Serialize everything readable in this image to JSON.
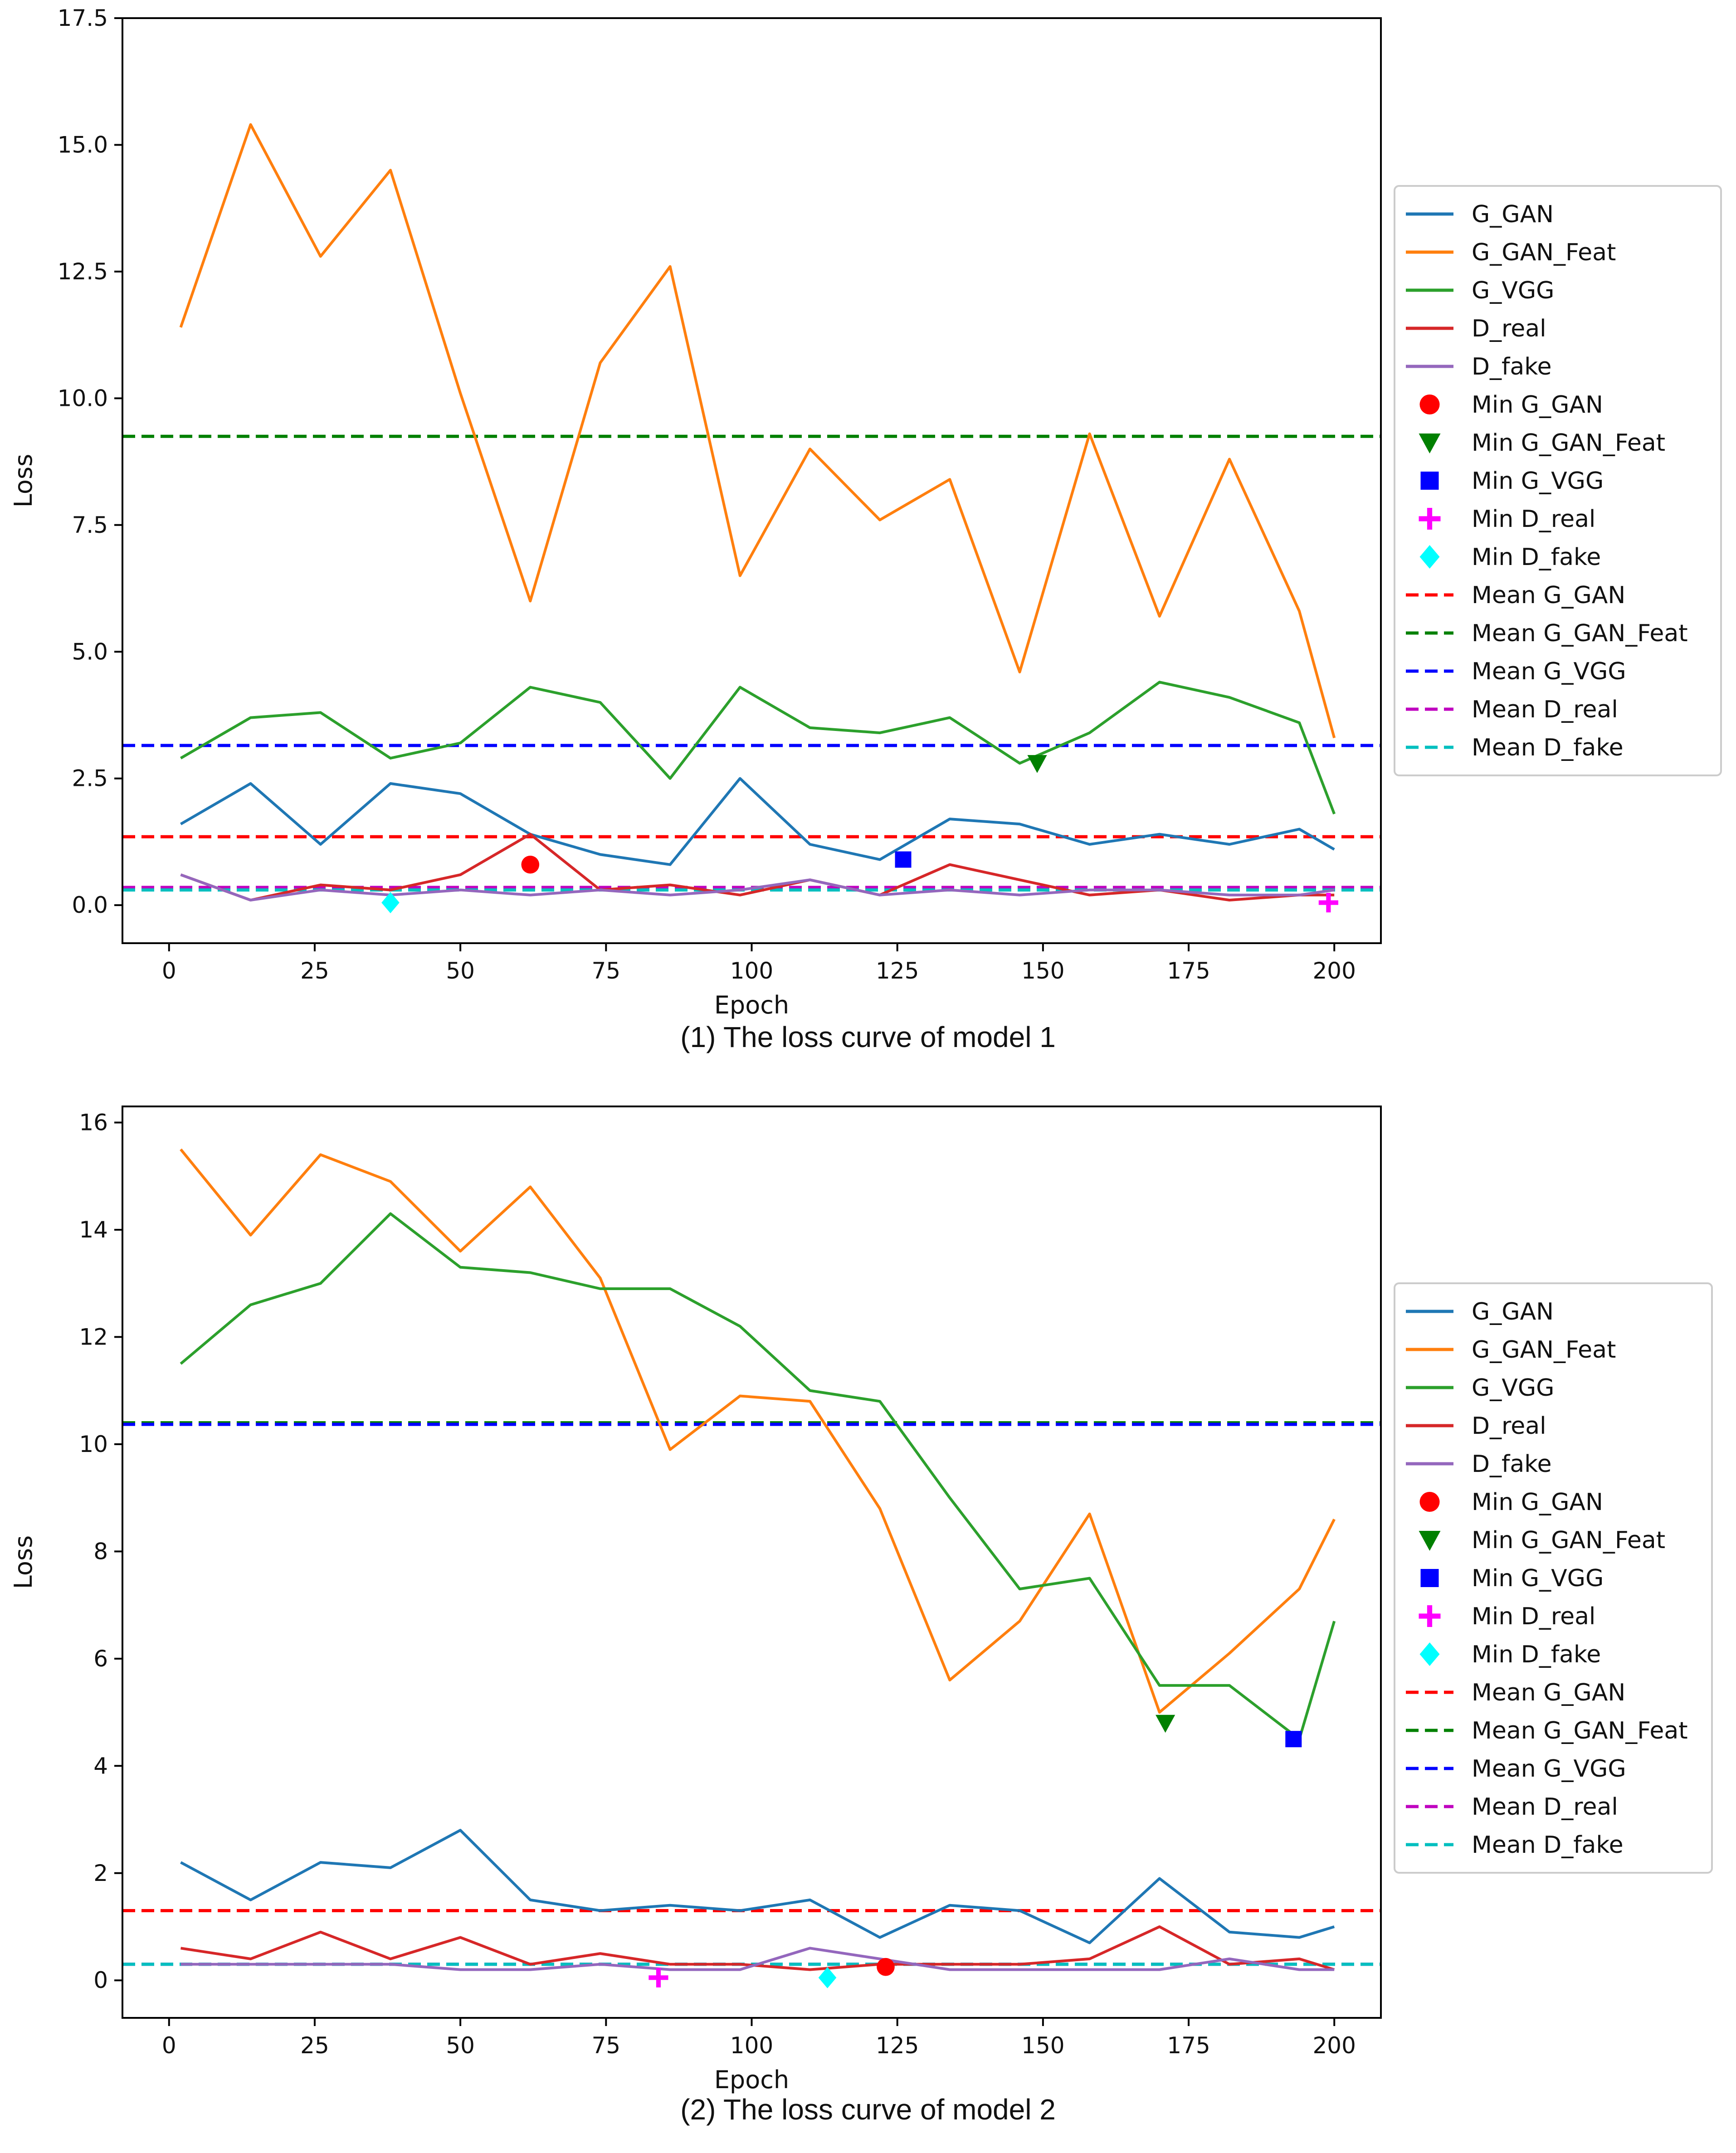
{
  "chart_data": [
    {
      "type": "line",
      "caption": "(1) The loss curve of model 1",
      "xlabel": "Epoch",
      "ylabel": "Loss",
      "xlim": [
        -8,
        208
      ],
      "ylim": [
        -0.75,
        17.5
      ],
      "xticks": [
        0,
        25,
        50,
        75,
        100,
        125,
        150,
        175,
        200
      ],
      "xtick_labels": [
        "0",
        "25",
        "50",
        "75",
        "100",
        "125",
        "150",
        "175",
        "200"
      ],
      "yticks": [
        0,
        2.5,
        5,
        7.5,
        10,
        12.5,
        15,
        17.5
      ],
      "ytick_labels": [
        "0.0",
        "2.5",
        "5.0",
        "7.5",
        "10.0",
        "12.5",
        "15.0",
        "17.5"
      ],
      "x": [
        2,
        14,
        26,
        38,
        50,
        62,
        74,
        86,
        98,
        110,
        122,
        134,
        146,
        158,
        170,
        182,
        194,
        200
      ],
      "series": [
        {
          "name": "G_GAN",
          "color": "#1f77b4",
          "values": [
            1.6,
            2.4,
            1.2,
            2.4,
            2.2,
            1.4,
            1.0,
            0.8,
            2.5,
            1.2,
            0.9,
            1.7,
            1.6,
            1.2,
            1.4,
            1.2,
            1.5,
            1.1
          ]
        },
        {
          "name": "G_GAN_Feat",
          "color": "#ff7f0e",
          "values": [
            11.4,
            15.4,
            12.8,
            14.5,
            10.1,
            6.0,
            10.7,
            12.6,
            6.5,
            9.0,
            7.6,
            8.4,
            4.6,
            9.3,
            5.7,
            8.8,
            5.8,
            3.3
          ]
        },
        {
          "name": "G_VGG",
          "color": "#2ca02c",
          "values": [
            2.9,
            3.7,
            3.8,
            2.9,
            3.2,
            4.3,
            4.0,
            2.5,
            4.3,
            3.5,
            3.4,
            3.7,
            2.8,
            3.4,
            4.4,
            4.1,
            3.6,
            1.8
          ]
        },
        {
          "name": "D_real",
          "color": "#d62728",
          "values": [
            0.6,
            0.1,
            0.4,
            0.3,
            0.6,
            1.4,
            0.3,
            0.4,
            0.2,
            0.5,
            0.2,
            0.8,
            0.5,
            0.2,
            0.3,
            0.1,
            0.2,
            0.2
          ]
        },
        {
          "name": "D_fake",
          "color": "#9467bd",
          "values": [
            0.6,
            0.1,
            0.3,
            0.2,
            0.3,
            0.2,
            0.3,
            0.2,
            0.3,
            0.5,
            0.2,
            0.3,
            0.2,
            0.3,
            0.3,
            0.2,
            0.2,
            0.3
          ]
        }
      ],
      "markers": [
        {
          "name": "Min G_GAN",
          "shape": "circle",
          "color": "#ff0000",
          "x": 62,
          "y": 0.8
        },
        {
          "name": "Min G_GAN_Feat",
          "shape": "triangle-down",
          "color": "#008000",
          "x": 149,
          "y": 2.8
        },
        {
          "name": "Min G_VGG",
          "shape": "square",
          "color": "#0000ff",
          "x": 126,
          "y": 0.9
        },
        {
          "name": "Min D_real",
          "shape": "plus",
          "color": "#ff00ff",
          "x": 199,
          "y": 0.05
        },
        {
          "name": "Min D_fake",
          "shape": "diamond",
          "color": "#00ffff",
          "x": 38,
          "y": 0.05
        }
      ],
      "means": [
        {
          "name": "Mean G_GAN",
          "color": "#ff0000",
          "value": 1.35
        },
        {
          "name": "Mean G_GAN_Feat",
          "color": "#008000",
          "value": 9.25
        },
        {
          "name": "Mean G_VGG",
          "color": "#0000ff",
          "value": 3.15
        },
        {
          "name": "Mean D_real",
          "color": "#bf00bf",
          "value": 0.35
        },
        {
          "name": "Mean D_fake",
          "color": "#00bfbf",
          "value": 0.3
        }
      ],
      "legend": "outside-right"
    },
    {
      "type": "line",
      "caption": "(2) The loss curve of model 2",
      "xlabel": "Epoch",
      "ylabel": "Loss",
      "xlim": [
        -8,
        208
      ],
      "ylim": [
        -0.7,
        16.3
      ],
      "xticks": [
        0,
        25,
        50,
        75,
        100,
        125,
        150,
        175,
        200
      ],
      "xtick_labels": [
        "0",
        "25",
        "50",
        "75",
        "100",
        "125",
        "150",
        "175",
        "200"
      ],
      "yticks": [
        0,
        2,
        4,
        6,
        8,
        10,
        12,
        14,
        16
      ],
      "ytick_labels": [
        "0",
        "2",
        "4",
        "6",
        "8",
        "10",
        "12",
        "14",
        "16"
      ],
      "x": [
        2,
        14,
        26,
        38,
        50,
        62,
        74,
        86,
        98,
        110,
        122,
        134,
        146,
        158,
        170,
        182,
        194,
        200
      ],
      "series": [
        {
          "name": "G_GAN",
          "color": "#1f77b4",
          "values": [
            2.2,
            1.5,
            2.2,
            2.1,
            2.8,
            1.5,
            1.3,
            1.4,
            1.3,
            1.5,
            0.8,
            1.4,
            1.3,
            0.7,
            1.9,
            0.9,
            0.8,
            1.0
          ]
        },
        {
          "name": "G_GAN_Feat",
          "color": "#ff7f0e",
          "values": [
            15.5,
            13.9,
            15.4,
            14.9,
            13.6,
            14.8,
            13.1,
            9.9,
            10.9,
            10.8,
            8.8,
            5.6,
            6.7,
            8.7,
            5.0,
            6.1,
            7.3,
            8.6
          ]
        },
        {
          "name": "G_VGG",
          "color": "#2ca02c",
          "values": [
            11.5,
            12.6,
            13.0,
            14.3,
            13.3,
            13.2,
            12.9,
            12.9,
            12.2,
            11.0,
            10.8,
            9.0,
            7.3,
            7.5,
            5.5,
            5.5,
            4.5,
            6.7
          ]
        },
        {
          "name": "D_real",
          "color": "#d62728",
          "values": [
            0.6,
            0.4,
            0.9,
            0.4,
            0.8,
            0.3,
            0.5,
            0.3,
            0.3,
            0.2,
            0.3,
            0.3,
            0.3,
            0.4,
            1.0,
            0.3,
            0.4,
            0.2
          ]
        },
        {
          "name": "D_fake",
          "color": "#9467bd",
          "values": [
            0.3,
            0.3,
            0.3,
            0.3,
            0.2,
            0.2,
            0.3,
            0.2,
            0.2,
            0.6,
            0.4,
            0.2,
            0.2,
            0.2,
            0.2,
            0.4,
            0.2,
            0.2
          ]
        }
      ],
      "markers": [
        {
          "name": "Min G_GAN",
          "shape": "circle",
          "color": "#ff0000",
          "x": 123,
          "y": 0.25
        },
        {
          "name": "Min G_GAN_Feat",
          "shape": "triangle-down",
          "color": "#008000",
          "x": 171,
          "y": 4.8
        },
        {
          "name": "Min G_VGG",
          "shape": "square",
          "color": "#0000ff",
          "x": 193,
          "y": 4.5
        },
        {
          "name": "Min D_real",
          "shape": "plus",
          "color": "#ff00ff",
          "x": 84,
          "y": 0.05
        },
        {
          "name": "Min D_fake",
          "shape": "diamond",
          "color": "#00ffff",
          "x": 113,
          "y": 0.05
        }
      ],
      "means": [
        {
          "name": "Mean G_GAN",
          "color": "#ff0000",
          "value": 1.3
        },
        {
          "name": "Mean G_GAN_Feat",
          "color": "#008000",
          "value": 10.4
        },
        {
          "name": "Mean G_VGG",
          "color": "#0000ff",
          "value": 10.37
        },
        {
          "name": "Mean D_real",
          "color": "#bf00bf",
          "value": 0.3
        },
        {
          "name": "Mean D_fake",
          "color": "#00bfbf",
          "value": 0.3
        }
      ],
      "legend": "outside-right"
    }
  ]
}
